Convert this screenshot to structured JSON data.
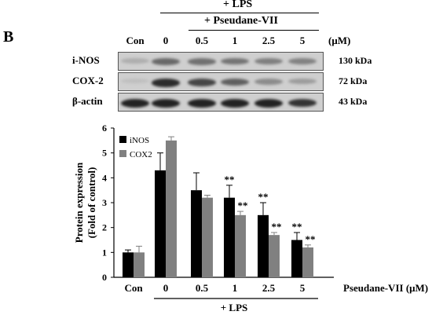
{
  "panel": {
    "label": "B"
  },
  "blot": {
    "lps_top": "+ LPS",
    "compound_top": "+ Pseudane-VII",
    "lanes": [
      "Con",
      "0",
      "0.5",
      "1",
      "2.5",
      "5"
    ],
    "unit": "(μM)",
    "rows": [
      {
        "label": "i-NOS",
        "kda": "130 kDa",
        "intensity": [
          0.15,
          0.55,
          0.5,
          0.48,
          0.42,
          0.4
        ]
      },
      {
        "label": "COX-2",
        "kda": "72 kDa",
        "intensity": [
          0.05,
          0.9,
          0.75,
          0.6,
          0.35,
          0.25
        ]
      },
      {
        "label": "β-actin",
        "kda": "43 kDa",
        "intensity": [
          0.95,
          0.95,
          0.95,
          0.95,
          0.95,
          0.85
        ]
      }
    ]
  },
  "chart_data": {
    "type": "bar",
    "categories": [
      "Con",
      "0",
      "0.5",
      "1",
      "2.5",
      "5"
    ],
    "x_suffix": "Pseudane-VII (μM)",
    "lps_label": "+ LPS",
    "ylabel": "Protein expression",
    "ylabel2": "(Fold of control)",
    "ylim": [
      0,
      6
    ],
    "yticks": [
      "0",
      "1",
      "2",
      "3",
      "4",
      "5",
      "6"
    ],
    "series": [
      {
        "name": "iNOS",
        "color": "#000000",
        "values": [
          1.0,
          4.3,
          3.5,
          3.2,
          2.5,
          1.5
        ],
        "errors": [
          0.1,
          0.7,
          0.7,
          0.5,
          0.5,
          0.3
        ],
        "sig": [
          "",
          "",
          "",
          "**",
          "**",
          "**"
        ]
      },
      {
        "name": "COX2",
        "color": "#808080",
        "values": [
          1.0,
          5.5,
          3.2,
          2.5,
          1.7,
          1.2
        ],
        "errors": [
          0.25,
          0.15,
          0.1,
          0.15,
          0.1,
          0.1
        ],
        "sig": [
          "",
          "",
          "",
          "**",
          "**",
          "**"
        ]
      }
    ]
  }
}
